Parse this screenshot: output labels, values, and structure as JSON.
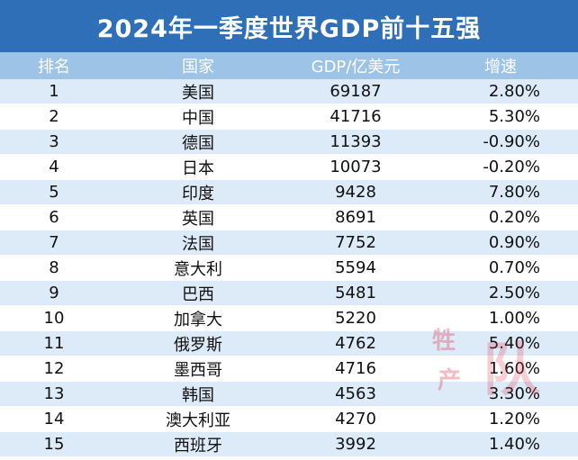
{
  "title": "2024年一季度世界GDP前十五强",
  "headers": {
    "rank": "排名",
    "country": "国家",
    "gdp": "GDP/亿美元",
    "growth": "增速"
  },
  "rows": [
    {
      "rank": "1",
      "country": "美国",
      "gdp": "69187",
      "growth": "2.80%"
    },
    {
      "rank": "2",
      "country": "中国",
      "gdp": "41716",
      "growth": "5.30%"
    },
    {
      "rank": "3",
      "country": "德国",
      "gdp": "11393",
      "growth": "-0.90%"
    },
    {
      "rank": "4",
      "country": "日本",
      "gdp": "10073",
      "growth": "-0.20%"
    },
    {
      "rank": "5",
      "country": "印度",
      "gdp": "9428",
      "growth": "7.80%"
    },
    {
      "rank": "6",
      "country": "英国",
      "gdp": "8691",
      "growth": "0.20%"
    },
    {
      "rank": "7",
      "country": "法国",
      "gdp": "7752",
      "growth": "0.90%"
    },
    {
      "rank": "8",
      "country": "意大利",
      "gdp": "5594",
      "growth": "0.70%"
    },
    {
      "rank": "9",
      "country": "巴西",
      "gdp": "5481",
      "growth": "2.50%"
    },
    {
      "rank": "10",
      "country": "加拿大",
      "gdp": "5220",
      "growth": "1.00%"
    },
    {
      "rank": "11",
      "country": "俄罗斯",
      "gdp": "4762",
      "growth": "5.40%"
    },
    {
      "rank": "12",
      "country": "墨西哥",
      "gdp": "4716",
      "growth": "1.60%"
    },
    {
      "rank": "13",
      "country": "韩国",
      "gdp": "4563",
      "growth": "3.30%"
    },
    {
      "rank": "14",
      "country": "澳大利亚",
      "gdp": "4270",
      "growth": "1.20%"
    },
    {
      "rank": "15",
      "country": "西班牙",
      "gdp": "3992",
      "growth": "1.40%"
    }
  ],
  "watermark": [
    "牲",
    "产",
    "队"
  ]
}
